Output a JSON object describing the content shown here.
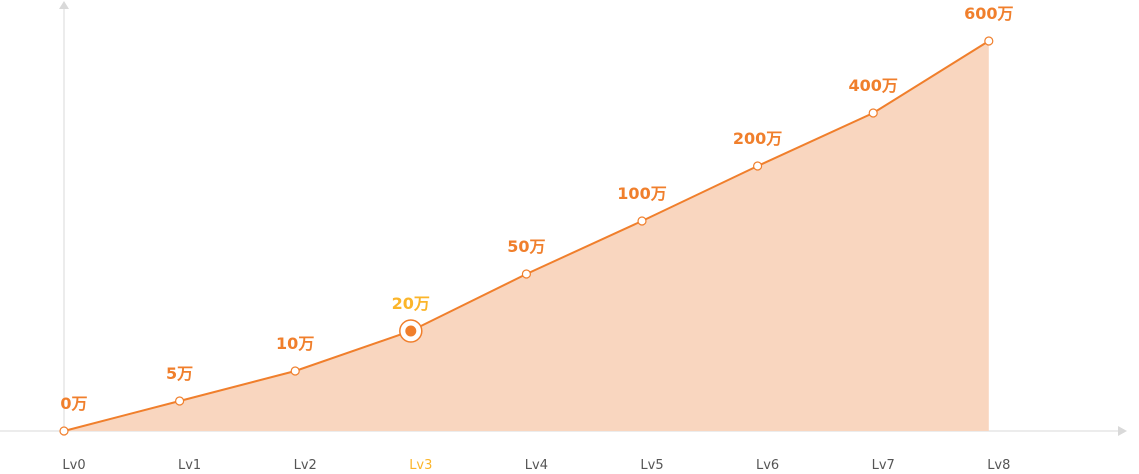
{
  "chart_data": {
    "type": "area",
    "categories": [
      "Lv0",
      "Lv1",
      "Lv2",
      "Lv3",
      "Lv4",
      "Lv5",
      "Lv6",
      "Lv7",
      "Lv8"
    ],
    "data_labels": [
      "0万",
      "5万",
      "10万",
      "20万",
      "50万",
      "100万",
      "200万",
      "400万",
      "600万"
    ],
    "values": [
      0,
      5,
      10,
      20,
      50,
      100,
      200,
      400,
      600
    ],
    "unit": "万",
    "highlighted_index": 3,
    "grid": false,
    "colors": {
      "line": "#f07f2c",
      "fill": "#f9d6bf",
      "label": "#f07f2c",
      "highlight_label": "#fbb52a",
      "axis": "#d9d9d9",
      "tick_text": "#555555"
    }
  }
}
